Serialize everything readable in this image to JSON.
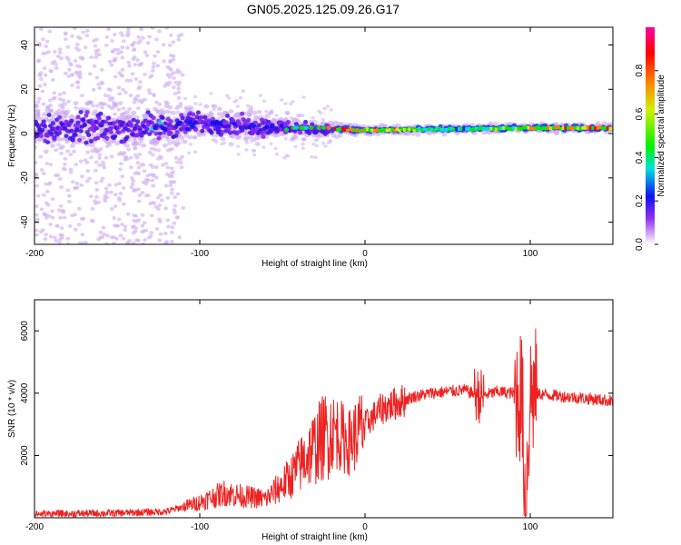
{
  "title": "GN05.2025.125.09.26.G17",
  "colors": {
    "snr_line": "#ee2222",
    "spectro_core": "#2020d0",
    "spectro_halo": "#c9a8f0"
  },
  "chart_data": [
    {
      "type": "heatmap",
      "title": "GN05.2025.125.09.26.G17",
      "xlabel": "Height of straight line (km)",
      "ylabel": "Frequency (Hz)",
      "xlim": [
        -200,
        150
      ],
      "ylim": [
        -50,
        48
      ],
      "xticks": [
        -200,
        -100,
        0,
        100
      ],
      "yticks": [
        -40,
        -20,
        0,
        20,
        40
      ],
      "colorbar": {
        "label": "Normalized spectral amplitude",
        "range": [
          0,
          1
        ],
        "ticks": [
          "0.0",
          "0.2",
          "0.4",
          "0.6",
          "0.8"
        ],
        "colormap": "rainbow (violet to red)"
      },
      "dominant_frequency_band": {
        "x": [
          -200,
          -120,
          -100,
          -60,
          -20,
          0,
          50,
          100,
          150
        ],
        "y_center": [
          2,
          3,
          5,
          3,
          2,
          1.5,
          2,
          2.5,
          2.5
        ],
        "y_spread": [
          12,
          10,
          8,
          7,
          3,
          2,
          2,
          2,
          2
        ],
        "peak_amplitude": [
          0.35,
          0.35,
          0.3,
          0.3,
          0.8,
          0.9,
          0.5,
          0.75,
          0.9
        ]
      }
    },
    {
      "type": "line",
      "xlabel": "Height of straight line (km)",
      "ylabel": "SNR (10 * v/v)",
      "xlim": [
        -200,
        150
      ],
      "ylim": [
        0,
        7000
      ],
      "xticks": [
        -200,
        -100,
        0,
        100
      ],
      "yticks": [
        2000,
        4000,
        6000
      ],
      "series": [
        {
          "x": [
            -200,
            -150,
            -120,
            -110,
            -100,
            -85,
            -75,
            -60,
            -45,
            -35,
            -25,
            -18,
            -10,
            0,
            10,
            20,
            30,
            40,
            50,
            60,
            70,
            80,
            90,
            95,
            97,
            100,
            110,
            120,
            130,
            140,
            150
          ],
          "y": [
            120,
            150,
            200,
            350,
            500,
            800,
            700,
            600,
            1300,
            2000,
            2600,
            2800,
            2400,
            3000,
            3500,
            3700,
            3900,
            4000,
            4050,
            4100,
            3900,
            4050,
            4000,
            3900,
            500,
            4000,
            3950,
            3900,
            3850,
            3800,
            3750
          ]
        }
      ]
    }
  ]
}
